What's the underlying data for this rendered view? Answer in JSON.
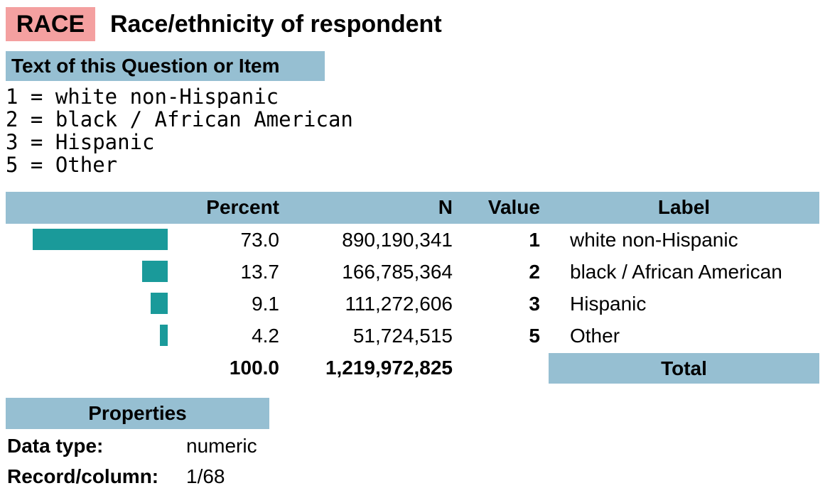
{
  "header": {
    "code": "RACE",
    "title": "Race/ethnicity of respondent"
  },
  "question": {
    "heading": "Text of this Question or Item",
    "lines": [
      "1 = white non-Hispanic",
      "2 = black / African American",
      "3 = Hispanic",
      "5 = Other"
    ]
  },
  "table": {
    "columns": [
      "Percent",
      "N",
      "Value",
      "Label"
    ],
    "rows": [
      [
        "73.0",
        "890,190,341",
        "1",
        "white non-Hispanic"
      ],
      [
        "13.7",
        "166,785,364",
        "2",
        "black / African American"
      ],
      [
        "9.1",
        "111,272,606",
        "3",
        "Hispanic"
      ],
      [
        "4.2",
        "51,724,515",
        "5",
        "Other"
      ]
    ],
    "total": {
      "percent": "100.0",
      "n": "1,219,972,825",
      "label": "Total"
    }
  },
  "properties": {
    "heading": "Properties",
    "rows": [
      [
        "Data type:",
        "numeric"
      ],
      [
        "Record/column:",
        "1/68"
      ]
    ]
  }
}
